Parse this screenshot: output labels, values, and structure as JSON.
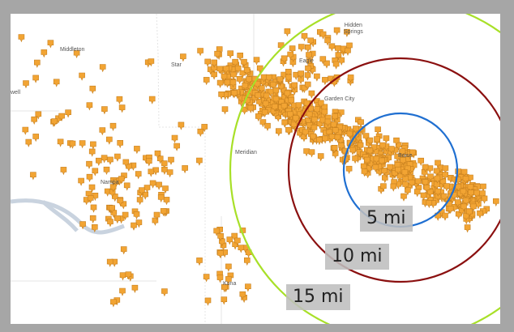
{
  "map": {
    "places": {
      "middleton": "Middleton",
      "star": "Star",
      "hidden_springs": "Hidden\nSprings",
      "eagle": "Eagle",
      "caldwell": "well",
      "garden_city": "Garden City",
      "meridian": "Meridian",
      "boise": "Boise",
      "nampa": "Nampa",
      "kuna": "Kuna"
    },
    "rings": [
      {
        "label": "5 mi",
        "color": "#1f6fd1"
      },
      {
        "label": "10 mi",
        "color": "#8b1010"
      },
      {
        "label": "15 mi",
        "color": "#a8e028"
      }
    ],
    "marker_color": "#f2a433",
    "marker_name": "location-pin-icon"
  }
}
